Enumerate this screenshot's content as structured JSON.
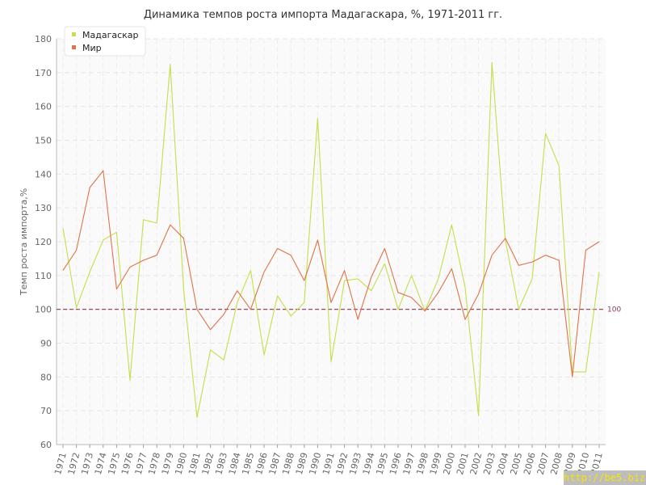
{
  "chart_data": {
    "type": "line",
    "title": "Динамика темпов роста импорта Мадагаскара, %, 1971-2011 гг.",
    "ylabel": "Темп роста импорта,%",
    "xlabel": "",
    "ylim": [
      60,
      180
    ],
    "yticks": [
      60,
      70,
      80,
      90,
      100,
      110,
      120,
      130,
      140,
      150,
      160,
      170,
      180
    ],
    "x": [
      "1971",
      "1972",
      "1973",
      "1974",
      "1975",
      "1976",
      "1977",
      "1978",
      "1979",
      "1980",
      "1981",
      "1982",
      "1983",
      "1984",
      "1985",
      "1986",
      "1987",
      "1988",
      "1989",
      "1990",
      "1991",
      "1992",
      "1993",
      "1994",
      "1995",
      "1996",
      "1997",
      "1998",
      "1999",
      "2000",
      "2001",
      "2002",
      "2003",
      "2004",
      "2005",
      "2006",
      "2007",
      "2008",
      "2009",
      "2010",
      "2011"
    ],
    "series": [
      {
        "name": "Мадагаскар",
        "color": "#c5de4a",
        "values": [
          124,
          100.5,
          111,
          120.5,
          122.8,
          79,
          126.5,
          125.5,
          172.5,
          106,
          68,
          88,
          85,
          102,
          111.5,
          86.5,
          104,
          98,
          102,
          156.5,
          84.5,
          108.5,
          109,
          105.5,
          113.5,
          100,
          110,
          99.5,
          109,
          125,
          106.5,
          68.5,
          173,
          120.5,
          100,
          109,
          152,
          142.5,
          81.5,
          81.5,
          111
        ]
      },
      {
        "name": "Мир",
        "color": "#e07348",
        "values": [
          111.5,
          117.5,
          136,
          141,
          106,
          112.5,
          114.5,
          116,
          125,
          121,
          100,
          94,
          98.5,
          105.5,
          100,
          111,
          118,
          116,
          108.5,
          120.5,
          102,
          111.5,
          97,
          109.5,
          118,
          105,
          103.5,
          99.5,
          105,
          112,
          97,
          104.5,
          116,
          121,
          113,
          114,
          116,
          114.5,
          80,
          117.5,
          120
        ]
      }
    ],
    "reference_line": {
      "value": 100,
      "label": "100",
      "color": "#8b3a52"
    },
    "grid": true,
    "legend": "top-left"
  },
  "watermark": "http://be5.biz"
}
